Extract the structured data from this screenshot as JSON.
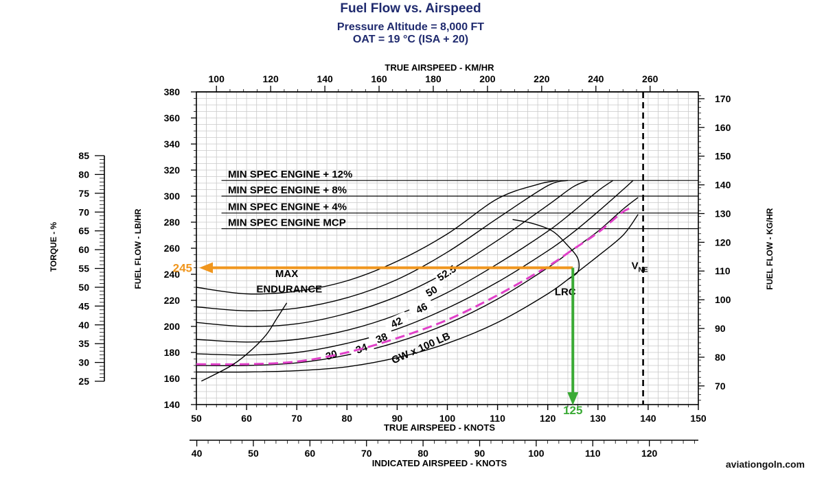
{
  "chart_data": {
    "type": "line",
    "title": "Fuel Flow vs. Airspeed",
    "subtitle_line1": "Pressure Altitude = 8,000 FT",
    "subtitle_line2": "OAT = 19 °C (ISA + 20)",
    "watermark": "aviationgoln.com",
    "axes": {
      "x_true_knots": {
        "label": "TRUE AIRSPEED - KNOTS",
        "range": [
          50,
          150
        ],
        "ticks": [
          50,
          60,
          70,
          80,
          90,
          100,
          110,
          120,
          130,
          140,
          150
        ]
      },
      "x_true_kmh": {
        "label": "TRUE AIRSPEED - KM/HR",
        "ticks": [
          100,
          120,
          140,
          160,
          180,
          200,
          220,
          240,
          260
        ]
      },
      "x_indicated_knots": {
        "label": "INDICATED AIRSPEED - KNOTS",
        "ticks": [
          40,
          50,
          60,
          70,
          80,
          90,
          100,
          110,
          120
        ]
      },
      "y_fuel_lb": {
        "label": "FUEL FLOW - LB/HR",
        "range": [
          140,
          380
        ],
        "ticks": [
          140,
          160,
          180,
          200,
          220,
          240,
          260,
          280,
          300,
          320,
          340,
          360,
          380
        ]
      },
      "y_fuel_kg": {
        "label": "FUEL FLOW - KG/HR",
        "ticks": [
          70,
          80,
          90,
          100,
          110,
          120,
          130,
          140,
          150,
          160,
          170
        ]
      },
      "y_torque": {
        "label": "TORQUE - %",
        "ticks": [
          25,
          30,
          35,
          40,
          45,
          50,
          55,
          60,
          65,
          70,
          75,
          80,
          85
        ]
      }
    },
    "grid": true,
    "limit_lines": [
      {
        "label": "MIN SPEC ENGINE + 12%",
        "fuel_flow": 312
      },
      {
        "label": "MIN SPEC ENGINE + 8%",
        "fuel_flow": 300
      },
      {
        "label": "MIN SPEC ENGINE + 4%",
        "fuel_flow": 287
      },
      {
        "label": "MIN SPEC ENGINE MCP",
        "fuel_flow": 275
      }
    ],
    "vne": {
      "label": "V",
      "subscript": "NE",
      "true_airspeed": 139
    },
    "gw_label": "GW  x  100 LB",
    "series": [
      {
        "name": "30",
        "label_at": [
          77,
          177
        ],
        "label_angle": -18,
        "x": [
          50,
          60,
          70,
          80,
          90,
          100,
          110,
          120,
          125,
          130,
          135,
          138
        ],
        "y": [
          165,
          165,
          166,
          169,
          176,
          187,
          203,
          225,
          239,
          254,
          270,
          286
        ]
      },
      {
        "name": "34",
        "label_at": [
          83,
          182
        ],
        "label_angle": -20,
        "x": [
          50,
          60,
          70,
          80,
          90,
          100,
          110,
          120,
          125,
          130,
          135,
          138
        ],
        "y": [
          170,
          170,
          172,
          178,
          188,
          202,
          221,
          245,
          259,
          273,
          290,
          299
        ]
      },
      {
        "name": "38",
        "label_at": [
          87,
          190
        ],
        "label_angle": -22,
        "x": [
          50,
          60,
          70,
          80,
          90,
          100,
          110,
          120,
          125,
          130,
          135,
          137
        ],
        "y": [
          179,
          178,
          180,
          187,
          198,
          214,
          234,
          258,
          272,
          288,
          305,
          312
        ]
      },
      {
        "name": "42",
        "label_at": [
          90,
          202
        ],
        "label_angle": -25,
        "x": [
          50,
          60,
          70,
          80,
          90,
          100,
          110,
          120,
          125,
          130,
          133
        ],
        "y": [
          190,
          188,
          190,
          197,
          209,
          226,
          248,
          273,
          288,
          304,
          312
        ]
      },
      {
        "name": "46",
        "label_at": [
          95,
          213
        ],
        "label_angle": -27,
        "x": [
          50,
          60,
          70,
          80,
          90,
          100,
          110,
          120,
          125,
          128
        ],
        "y": [
          203,
          200,
          202,
          210,
          223,
          242,
          266,
          293,
          307,
          312
        ]
      },
      {
        "name": "50",
        "label_at": [
          97,
          226
        ],
        "label_angle": -30,
        "x": [
          50,
          60,
          70,
          80,
          90,
          100,
          110,
          120,
          124
        ],
        "y": [
          215,
          212,
          214,
          222,
          236,
          257,
          283,
          308,
          312
        ]
      },
      {
        "name": "52.5",
        "label_at": [
          100,
          240
        ],
        "label_angle": -33,
        "x": [
          50,
          60,
          70,
          80,
          90,
          100,
          110,
          118,
          122
        ],
        "y": [
          230,
          225,
          227,
          235,
          250,
          271,
          298,
          309,
          312
        ]
      }
    ],
    "dashed_curve": {
      "x": [
        50,
        60,
        70,
        80,
        90,
        100,
        110,
        120,
        125,
        130,
        135,
        137
      ],
      "y": [
        171,
        171,
        173,
        180,
        191,
        205,
        224,
        246,
        259,
        272,
        288,
        291
      ]
    },
    "max_endurance": {
      "label_line1": "MAX",
      "label_line2": "ENDURANCE",
      "x": [
        51,
        57,
        61,
        64,
        66,
        68
      ],
      "y": [
        158,
        170,
        182,
        194,
        206,
        218
      ]
    },
    "lrc": {
      "label": "LRC",
      "x": [
        113,
        117,
        121,
        124,
        126,
        126,
        124
      ],
      "y": [
        282,
        279,
        273,
        262,
        252,
        242,
        236
      ]
    },
    "example_answer": {
      "fuel_flow": 245,
      "fuel_flow_label": "245",
      "true_airspeed": 125,
      "true_airspeed_label": "125",
      "point": [
        125,
        245
      ]
    }
  }
}
